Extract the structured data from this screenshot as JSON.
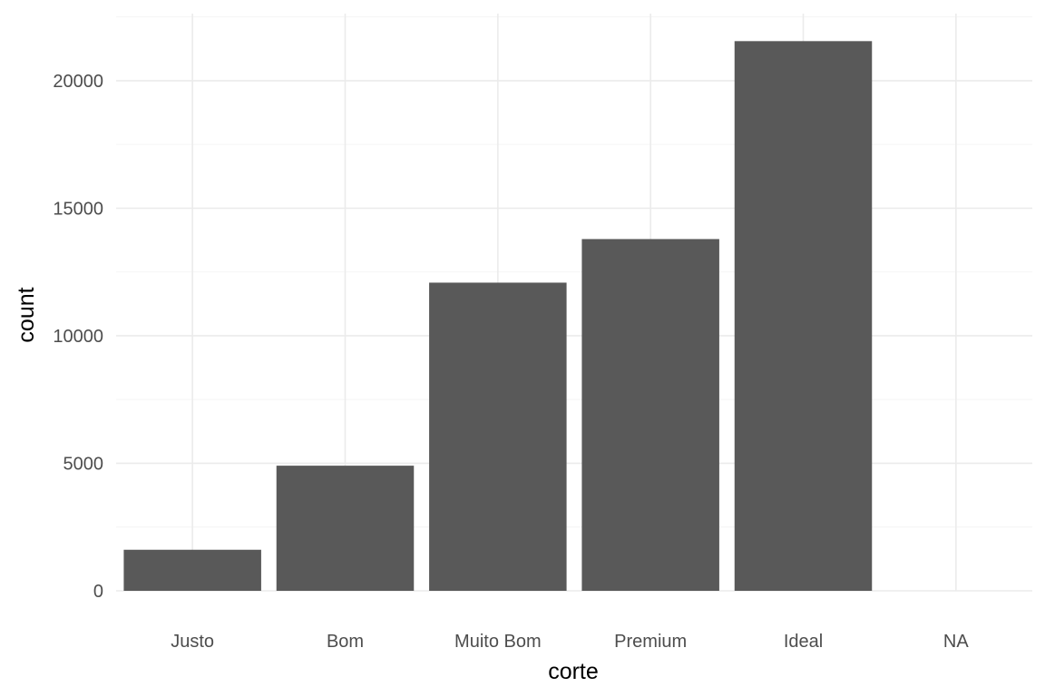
{
  "chart_data": {
    "type": "bar",
    "categories": [
      "Justo",
      "Bom",
      "Muito Bom",
      "Premium",
      "Ideal",
      "NA"
    ],
    "values": [
      1610,
      4906,
      12082,
      13791,
      21551,
      0
    ],
    "xlabel": "corte",
    "ylabel": "count",
    "ylim": [
      0,
      22630
    ],
    "yticks": [
      0,
      5000,
      10000,
      15000,
      20000
    ],
    "grid": true,
    "bar_color": "#595959",
    "gridline_color": "#ebebeb",
    "tick_label_color": "#4d4d4d"
  }
}
